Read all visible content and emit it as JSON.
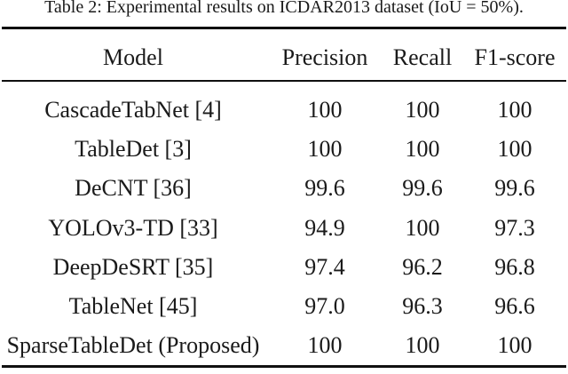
{
  "caption": "Table 2: Experimental results on ICDAR2013 dataset (IoU = 50%).",
  "table": {
    "columns": [
      "Model",
      "Precision",
      "Recall",
      "F1-score"
    ],
    "rows": [
      {
        "model": "CascadeTabNet [4]",
        "precision": "100",
        "recall": "100",
        "f1": "100"
      },
      {
        "model": "TableDet [3]",
        "precision": "100",
        "recall": "100",
        "f1": "100"
      },
      {
        "model": "DeCNT [36]",
        "precision": "99.6",
        "recall": "99.6",
        "f1": "99.6"
      },
      {
        "model": "YOLOv3-TD [33]",
        "precision": "94.9",
        "recall": "100",
        "f1": "97.3"
      },
      {
        "model": "DeepDeSRT [35]",
        "precision": "97.4",
        "recall": "96.2",
        "f1": "96.8"
      },
      {
        "model": "TableNet [45]",
        "precision": "97.0",
        "recall": "96.3",
        "f1": "96.6"
      },
      {
        "model": "SparseTableDet (Proposed)",
        "precision": "100",
        "recall": "100",
        "f1": "100"
      }
    ]
  },
  "style": {
    "text_color": "#1a1a1a",
    "rule_color": "#101010",
    "background": "#ffffff"
  }
}
